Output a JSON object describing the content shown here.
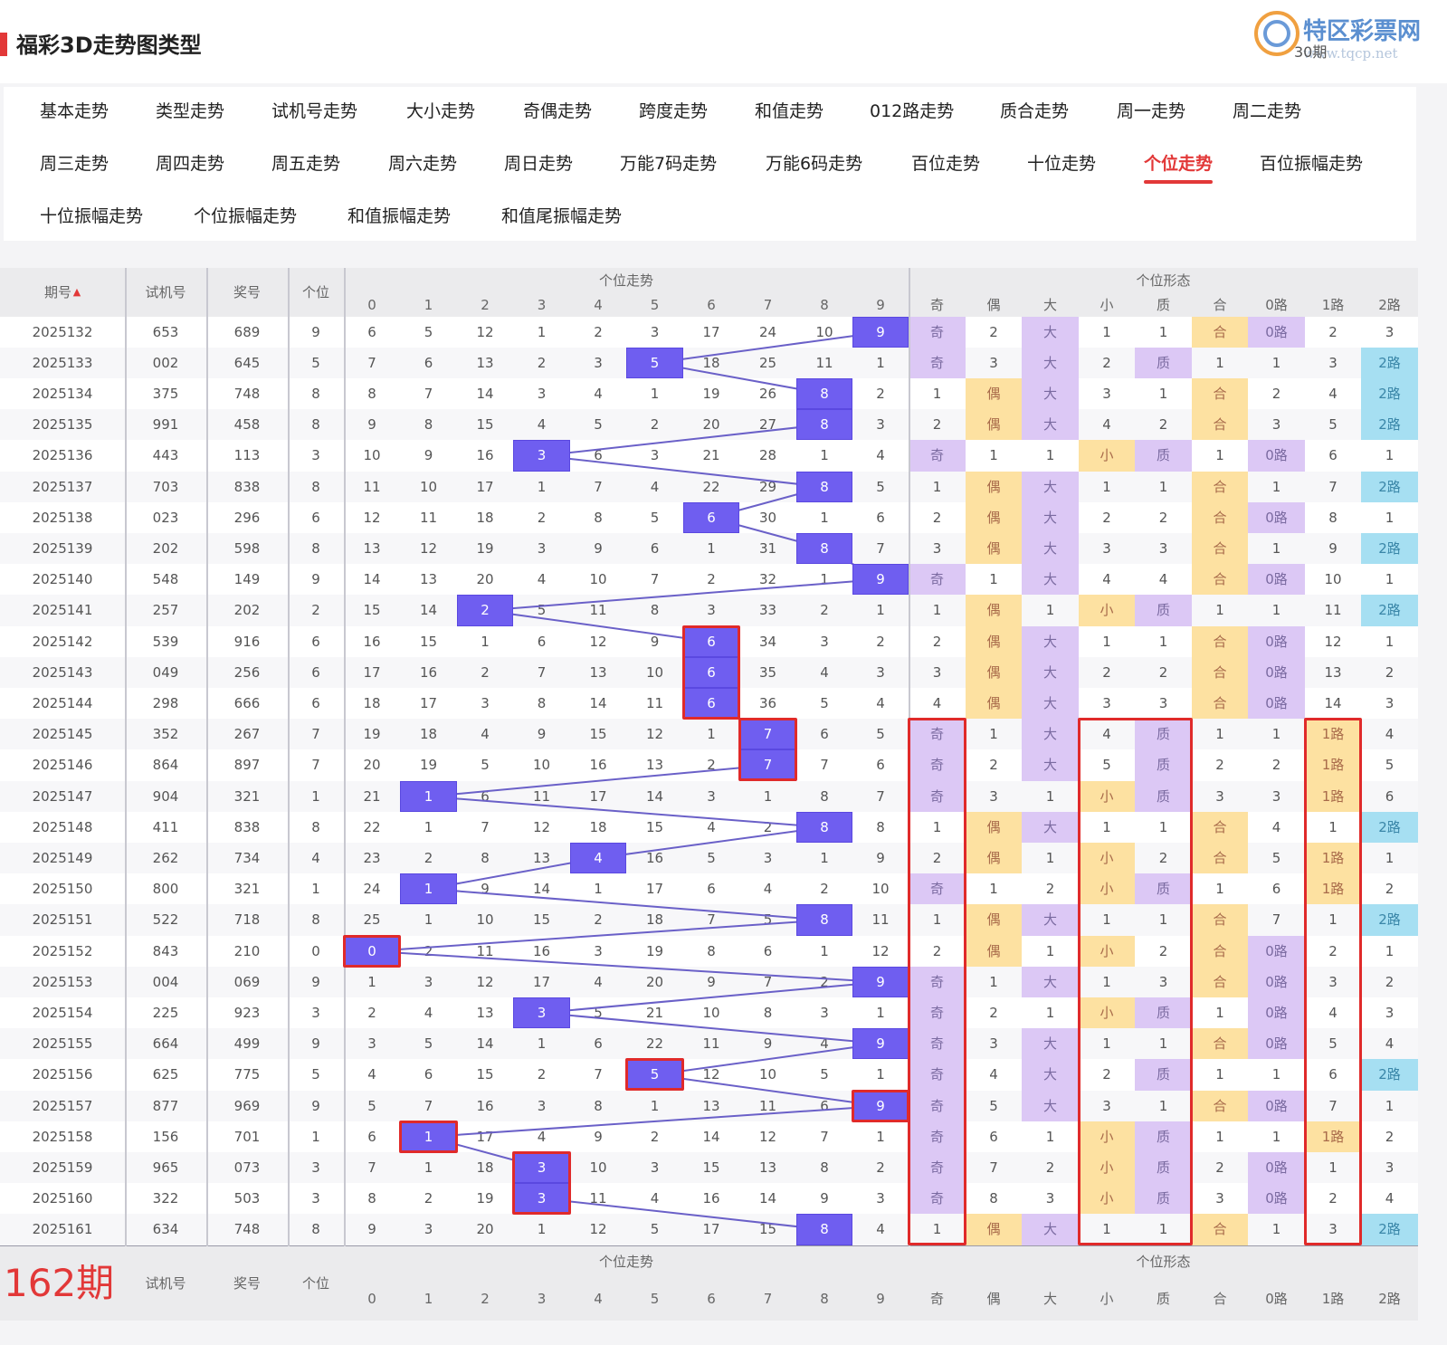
{
  "page_title": "福彩3D走势图类型",
  "watermark": {
    "name": "特区彩票网",
    "url": "www.tqcp.net",
    "periods": "30期"
  },
  "tabs": [
    {
      "label": "基本走势"
    },
    {
      "label": "类型走势"
    },
    {
      "label": "试机号走势"
    },
    {
      "label": "大小走势"
    },
    {
      "label": "奇偶走势"
    },
    {
      "label": "跨度走势"
    },
    {
      "label": "和值走势"
    },
    {
      "label": "012路走势"
    },
    {
      "label": "质合走势"
    },
    {
      "label": "周一走势"
    },
    {
      "label": "周二走势"
    },
    {
      "label": "周三走势"
    },
    {
      "label": "周四走势"
    },
    {
      "label": "周五走势"
    },
    {
      "label": "周六走势"
    },
    {
      "label": "周日走势"
    },
    {
      "label": "万能7码走势"
    },
    {
      "label": "万能6码走势"
    },
    {
      "label": "百位走势"
    },
    {
      "label": "十位走势"
    },
    {
      "label": "个位走势",
      "active": true
    },
    {
      "label": "百位振幅走势"
    },
    {
      "label": "十位振幅走势"
    },
    {
      "label": "个位振幅走势"
    },
    {
      "label": "和值振幅走势"
    },
    {
      "label": "和值尾振幅走势"
    }
  ],
  "table": {
    "headers": {
      "issue": "期号",
      "trial": "试机号",
      "prize": "奖号",
      "unit": "个位",
      "group1": "个位走势",
      "group2": "个位形态",
      "sort_icon": "sort-up-icon"
    },
    "digit_cols": [
      "0",
      "1",
      "2",
      "3",
      "4",
      "5",
      "6",
      "7",
      "8",
      "9"
    ],
    "form_cols": [
      "奇",
      "偶",
      "大",
      "小",
      "质",
      "合",
      "0路",
      "1路",
      "2路"
    ],
    "rows": [
      {
        "issue": "2025132",
        "trial": "653",
        "prize": "689",
        "unit": "9",
        "digits": [
          "6",
          "5",
          "12",
          "1",
          "2",
          "3",
          "17",
          "24",
          "10",
          "9"
        ],
        "forms": [
          "奇",
          "2",
          "大",
          "1",
          "1",
          "合",
          "0路",
          "2",
          "3"
        ]
      },
      {
        "issue": "2025133",
        "trial": "002",
        "prize": "645",
        "unit": "5",
        "digits": [
          "7",
          "6",
          "13",
          "2",
          "3",
          "5",
          "18",
          "25",
          "11",
          "1"
        ],
        "forms": [
          "奇",
          "3",
          "大",
          "2",
          "质",
          "1",
          "1",
          "3",
          "2路"
        ]
      },
      {
        "issue": "2025134",
        "trial": "375",
        "prize": "748",
        "unit": "8",
        "digits": [
          "8",
          "7",
          "14",
          "3",
          "4",
          "1",
          "19",
          "26",
          "8",
          "2"
        ],
        "forms": [
          "1",
          "偶",
          "大",
          "3",
          "1",
          "合",
          "2",
          "4",
          "2路"
        ]
      },
      {
        "issue": "2025135",
        "trial": "991",
        "prize": "458",
        "unit": "8",
        "digits": [
          "9",
          "8",
          "15",
          "4",
          "5",
          "2",
          "20",
          "27",
          "8",
          "3"
        ],
        "forms": [
          "2",
          "偶",
          "大",
          "4",
          "2",
          "合",
          "3",
          "5",
          "2路"
        ]
      },
      {
        "issue": "2025136",
        "trial": "443",
        "prize": "113",
        "unit": "3",
        "digits": [
          "10",
          "9",
          "16",
          "3",
          "6",
          "3",
          "21",
          "28",
          "1",
          "4"
        ],
        "forms": [
          "奇",
          "1",
          "1",
          "小",
          "质",
          "1",
          "0路",
          "6",
          "1"
        ]
      },
      {
        "issue": "2025137",
        "trial": "703",
        "prize": "838",
        "unit": "8",
        "digits": [
          "11",
          "10",
          "17",
          "1",
          "7",
          "4",
          "22",
          "29",
          "8",
          "5"
        ],
        "forms": [
          "1",
          "偶",
          "大",
          "1",
          "1",
          "合",
          "1",
          "7",
          "2路"
        ]
      },
      {
        "issue": "2025138",
        "trial": "023",
        "prize": "296",
        "unit": "6",
        "digits": [
          "12",
          "11",
          "18",
          "2",
          "8",
          "5",
          "6",
          "30",
          "1",
          "6"
        ],
        "forms": [
          "2",
          "偶",
          "大",
          "2",
          "2",
          "合",
          "0路",
          "8",
          "1"
        ]
      },
      {
        "issue": "2025139",
        "trial": "202",
        "prize": "598",
        "unit": "8",
        "digits": [
          "13",
          "12",
          "19",
          "3",
          "9",
          "6",
          "1",
          "31",
          "8",
          "7"
        ],
        "forms": [
          "3",
          "偶",
          "大",
          "3",
          "3",
          "合",
          "1",
          "9",
          "2路"
        ]
      },
      {
        "issue": "2025140",
        "trial": "548",
        "prize": "149",
        "unit": "9",
        "digits": [
          "14",
          "13",
          "20",
          "4",
          "10",
          "7",
          "2",
          "32",
          "1",
          "9"
        ],
        "forms": [
          "奇",
          "1",
          "大",
          "4",
          "4",
          "合",
          "0路",
          "10",
          "1"
        ]
      },
      {
        "issue": "2025141",
        "trial": "257",
        "prize": "202",
        "unit": "2",
        "digits": [
          "15",
          "14",
          "2",
          "5",
          "11",
          "8",
          "3",
          "33",
          "2",
          "1"
        ],
        "forms": [
          "1",
          "偶",
          "1",
          "小",
          "质",
          "1",
          "1",
          "11",
          "2路"
        ]
      },
      {
        "issue": "2025142",
        "trial": "539",
        "prize": "916",
        "unit": "6",
        "digits": [
          "16",
          "15",
          "1",
          "6",
          "12",
          "9",
          "6",
          "34",
          "3",
          "2"
        ],
        "forms": [
          "2",
          "偶",
          "大",
          "1",
          "1",
          "合",
          "0路",
          "12",
          "1"
        ]
      },
      {
        "issue": "2025143",
        "trial": "049",
        "prize": "256",
        "unit": "6",
        "digits": [
          "17",
          "16",
          "2",
          "7",
          "13",
          "10",
          "6",
          "35",
          "4",
          "3"
        ],
        "forms": [
          "3",
          "偶",
          "大",
          "2",
          "2",
          "合",
          "0路",
          "13",
          "2"
        ]
      },
      {
        "issue": "2025144",
        "trial": "298",
        "prize": "666",
        "unit": "6",
        "digits": [
          "18",
          "17",
          "3",
          "8",
          "14",
          "11",
          "6",
          "36",
          "5",
          "4"
        ],
        "forms": [
          "4",
          "偶",
          "大",
          "3",
          "3",
          "合",
          "0路",
          "14",
          "3"
        ]
      },
      {
        "issue": "2025145",
        "trial": "352",
        "prize": "267",
        "unit": "7",
        "digits": [
          "19",
          "18",
          "4",
          "9",
          "15",
          "12",
          "1",
          "7",
          "6",
          "5"
        ],
        "forms": [
          "奇",
          "1",
          "大",
          "4",
          "质",
          "1",
          "1",
          "1路",
          "4"
        ]
      },
      {
        "issue": "2025146",
        "trial": "864",
        "prize": "897",
        "unit": "7",
        "digits": [
          "20",
          "19",
          "5",
          "10",
          "16",
          "13",
          "2",
          "7",
          "7",
          "6"
        ],
        "forms": [
          "奇",
          "2",
          "大",
          "5",
          "质",
          "2",
          "2",
          "1路",
          "5"
        ]
      },
      {
        "issue": "2025147",
        "trial": "904",
        "prize": "321",
        "unit": "1",
        "digits": [
          "21",
          "1",
          "6",
          "11",
          "17",
          "14",
          "3",
          "1",
          "8",
          "7"
        ],
        "forms": [
          "奇",
          "3",
          "1",
          "小",
          "质",
          "3",
          "3",
          "1路",
          "6"
        ]
      },
      {
        "issue": "2025148",
        "trial": "411",
        "prize": "838",
        "unit": "8",
        "digits": [
          "22",
          "1",
          "7",
          "12",
          "18",
          "15",
          "4",
          "2",
          "8",
          "8"
        ],
        "forms": [
          "1",
          "偶",
          "大",
          "1",
          "1",
          "合",
          "4",
          "1",
          "2路"
        ]
      },
      {
        "issue": "2025149",
        "trial": "262",
        "prize": "734",
        "unit": "4",
        "digits": [
          "23",
          "2",
          "8",
          "13",
          "4",
          "16",
          "5",
          "3",
          "1",
          "9"
        ],
        "forms": [
          "2",
          "偶",
          "1",
          "小",
          "2",
          "合",
          "5",
          "1路",
          "1"
        ]
      },
      {
        "issue": "2025150",
        "trial": "800",
        "prize": "321",
        "unit": "1",
        "digits": [
          "24",
          "1",
          "9",
          "14",
          "1",
          "17",
          "6",
          "4",
          "2",
          "10"
        ],
        "forms": [
          "奇",
          "1",
          "2",
          "小",
          "质",
          "1",
          "6",
          "1路",
          "2"
        ]
      },
      {
        "issue": "2025151",
        "trial": "522",
        "prize": "718",
        "unit": "8",
        "digits": [
          "25",
          "1",
          "10",
          "15",
          "2",
          "18",
          "7",
          "5",
          "8",
          "11"
        ],
        "forms": [
          "1",
          "偶",
          "大",
          "1",
          "1",
          "合",
          "7",
          "1",
          "2路"
        ]
      },
      {
        "issue": "2025152",
        "trial": "843",
        "prize": "210",
        "unit": "0",
        "digits": [
          "0",
          "2",
          "11",
          "16",
          "3",
          "19",
          "8",
          "6",
          "1",
          "12"
        ],
        "forms": [
          "2",
          "偶",
          "1",
          "小",
          "2",
          "合",
          "0路",
          "2",
          "1"
        ]
      },
      {
        "issue": "2025153",
        "trial": "004",
        "prize": "069",
        "unit": "9",
        "digits": [
          "1",
          "3",
          "12",
          "17",
          "4",
          "20",
          "9",
          "7",
          "2",
          "9"
        ],
        "forms": [
          "奇",
          "1",
          "大",
          "1",
          "3",
          "合",
          "0路",
          "3",
          "2"
        ]
      },
      {
        "issue": "2025154",
        "trial": "225",
        "prize": "923",
        "unit": "3",
        "digits": [
          "2",
          "4",
          "13",
          "3",
          "5",
          "21",
          "10",
          "8",
          "3",
          "1"
        ],
        "forms": [
          "奇",
          "2",
          "1",
          "小",
          "质",
          "1",
          "0路",
          "4",
          "3"
        ]
      },
      {
        "issue": "2025155",
        "trial": "664",
        "prize": "499",
        "unit": "9",
        "digits": [
          "3",
          "5",
          "14",
          "1",
          "6",
          "22",
          "11",
          "9",
          "4",
          "9"
        ],
        "forms": [
          "奇",
          "3",
          "大",
          "1",
          "1",
          "合",
          "0路",
          "5",
          "4"
        ]
      },
      {
        "issue": "2025156",
        "trial": "625",
        "prize": "775",
        "unit": "5",
        "digits": [
          "4",
          "6",
          "15",
          "2",
          "7",
          "5",
          "12",
          "10",
          "5",
          "1"
        ],
        "forms": [
          "奇",
          "4",
          "大",
          "2",
          "质",
          "1",
          "1",
          "6",
          "2路"
        ]
      },
      {
        "issue": "2025157",
        "trial": "877",
        "prize": "969",
        "unit": "9",
        "digits": [
          "5",
          "7",
          "16",
          "3",
          "8",
          "1",
          "13",
          "11",
          "6",
          "9"
        ],
        "forms": [
          "奇",
          "5",
          "大",
          "3",
          "1",
          "合",
          "0路",
          "7",
          "1"
        ]
      },
      {
        "issue": "2025158",
        "trial": "156",
        "prize": "701",
        "unit": "1",
        "digits": [
          "6",
          "1",
          "17",
          "4",
          "9",
          "2",
          "14",
          "12",
          "7",
          "1"
        ],
        "forms": [
          "奇",
          "6",
          "1",
          "小",
          "质",
          "1",
          "1",
          "1路",
          "2"
        ]
      },
      {
        "issue": "2025159",
        "trial": "965",
        "prize": "073",
        "unit": "3",
        "digits": [
          "7",
          "1",
          "18",
          "3",
          "10",
          "3",
          "15",
          "13",
          "8",
          "2"
        ],
        "forms": [
          "奇",
          "7",
          "2",
          "小",
          "质",
          "2",
          "0路",
          "1",
          "3"
        ]
      },
      {
        "issue": "2025160",
        "trial": "322",
        "prize": "503",
        "unit": "3",
        "digits": [
          "8",
          "2",
          "19",
          "3",
          "11",
          "4",
          "16",
          "14",
          "9",
          "3"
        ],
        "forms": [
          "奇",
          "8",
          "3",
          "小",
          "质",
          "3",
          "0路",
          "2",
          "4"
        ]
      },
      {
        "issue": "2025161",
        "trial": "634",
        "prize": "748",
        "unit": "8",
        "digits": [
          "9",
          "3",
          "20",
          "1",
          "12",
          "5",
          "17",
          "15",
          "8",
          "4"
        ],
        "forms": [
          "1",
          "偶",
          "大",
          "1",
          "1",
          "合",
          "1",
          "3",
          "2路"
        ]
      }
    ],
    "footer": {
      "next_issue": "162期",
      "trial": "试机号",
      "prize": "奖号",
      "unit": "个位",
      "group1": "个位走势",
      "group2": "个位形态"
    }
  },
  "colors": {
    "accent": "#e23838",
    "hit_blue": "#6f5ef0",
    "odd_purple": "#dcc8f5",
    "even_yellow": "#fde1a1",
    "route2_cyan": "#a6dff2"
  }
}
